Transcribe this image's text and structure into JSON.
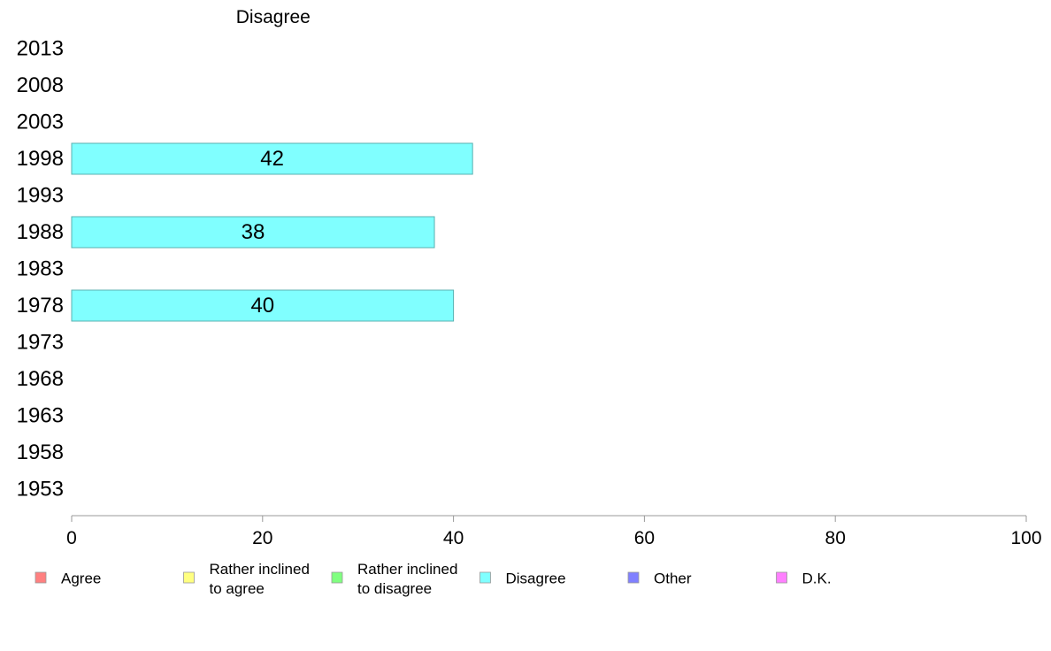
{
  "chart_data": {
    "type": "bar",
    "orientation": "horizontal",
    "title": "Disagree",
    "categories": [
      "2013",
      "2008",
      "2003",
      "1998",
      "1993",
      "1988",
      "1983",
      "1978",
      "1973",
      "1968",
      "1963",
      "1958",
      "1953"
    ],
    "series": [
      {
        "name": "Disagree",
        "color": "#80ffff",
        "values": [
          null,
          null,
          null,
          42,
          null,
          38,
          null,
          40,
          null,
          null,
          null,
          null,
          null
        ]
      }
    ],
    "xlim": [
      0,
      100
    ],
    "x_ticks": [
      0,
      20,
      40,
      60,
      80,
      100
    ],
    "grid": false,
    "legend_position": "bottom",
    "legend": [
      {
        "label": "Agree",
        "color": "#ff8080"
      },
      {
        "label": "Rather inclined to agree",
        "lines": [
          "Rather inclined",
          "to agree"
        ],
        "color": "#ffff80"
      },
      {
        "label": "Rather inclined to disagree",
        "lines": [
          "Rather inclined",
          "to disagree"
        ],
        "color": "#80ff80"
      },
      {
        "label": "Disagree",
        "color": "#80ffff"
      },
      {
        "label": "Other",
        "color": "#8080ff"
      },
      {
        "label": "D.K.",
        "color": "#ff80ff"
      }
    ]
  }
}
